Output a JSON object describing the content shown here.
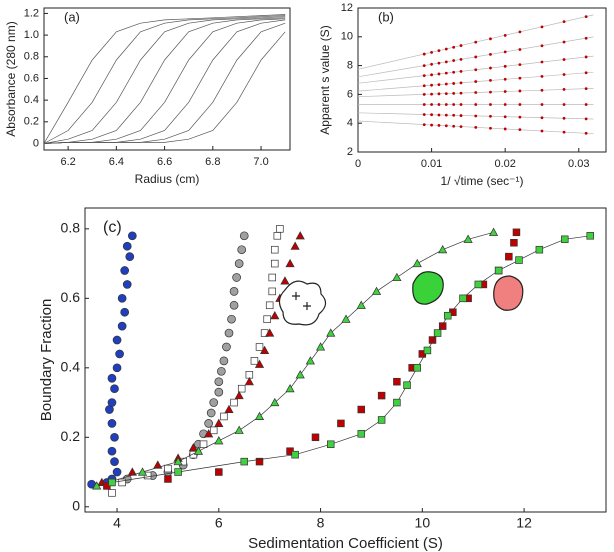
{
  "chart_data": [
    {
      "type": "line",
      "annotation": "(a)",
      "x_label": "Radius (cm)",
      "y_label": "Absorbance (280 nm)",
      "color": "#555555",
      "x": [
        6.1,
        6.2,
        6.3,
        6.4,
        6.5,
        6.6,
        6.7,
        6.8,
        6.9,
        7.0,
        7.1
      ],
      "series": [
        {
          "values": [
            0,
            0.38,
            0.77,
            1.03,
            1.11,
            1.14,
            1.15,
            1.16,
            1.17,
            1.18,
            1.19
          ]
        },
        {
          "values": [
            0,
            0.12,
            0.38,
            0.77,
            1.03,
            1.11,
            1.14,
            1.15,
            1.16,
            1.17,
            1.18
          ]
        },
        {
          "values": [
            0,
            0.04,
            0.12,
            0.38,
            0.77,
            1.03,
            1.11,
            1.14,
            1.15,
            1.16,
            1.17
          ]
        },
        {
          "values": [
            0,
            0.01,
            0.04,
            0.12,
            0.38,
            0.77,
            1.03,
            1.11,
            1.14,
            1.15,
            1.16
          ]
        },
        {
          "values": [
            0,
            0.01,
            0.01,
            0.04,
            0.12,
            0.38,
            0.77,
            1.03,
            1.11,
            1.14,
            1.15
          ]
        },
        {
          "values": [
            0,
            0.01,
            0.01,
            0.01,
            0.04,
            0.12,
            0.38,
            0.77,
            1.03,
            1.11,
            1.14
          ]
        },
        {
          "values": [
            0,
            0.01,
            0.01,
            0.01,
            0.01,
            0.04,
            0.12,
            0.38,
            0.77,
            1.03,
            1.11
          ]
        },
        {
          "values": [
            0,
            0.01,
            0.01,
            0.01,
            0.01,
            0.01,
            0.04,
            0.12,
            0.38,
            0.77,
            1.03
          ]
        }
      ],
      "xlim": [
        6.1,
        7.12
      ],
      "xticks": [
        6.2,
        6.4,
        6.6,
        6.8,
        {
          "value": 7.0,
          "label": "7.0"
        }
      ],
      "ylim": [
        -0.06,
        1.25
      ],
      "yticks": [
        0,
        0.2,
        0.4,
        0.6,
        0.8,
        {
          "value": 1.0,
          "label": "1.0"
        },
        1.2
      ]
    },
    {
      "type": "scatter",
      "annotation": "(b)",
      "x_label": "1/ √time (sec⁻¹)",
      "y_label": "Apparent s value (S)",
      "color": "#c00000",
      "x": [
        0.009,
        0.01,
        0.011,
        0.012,
        0.013,
        0.014,
        0.016,
        0.018,
        0.02,
        0.022,
        0.025,
        0.028,
        0.031
      ],
      "series": [
        {
          "values": [
            3.9,
            3.87,
            3.85,
            3.82,
            3.79,
            3.76,
            3.71,
            3.65,
            3.6,
            3.55,
            3.46,
            3.38,
            3.3
          ]
        },
        {
          "values": [
            4.6,
            4.59,
            4.57,
            4.56,
            4.55,
            4.53,
            4.5,
            4.48,
            4.45,
            4.42,
            4.38,
            4.34,
            4.3
          ]
        },
        {
          "values": [
            5.3,
            5.3,
            5.3,
            5.3,
            5.3,
            5.3,
            5.3,
            5.3,
            5.3,
            5.3,
            5.3,
            5.3,
            5.3
          ]
        },
        {
          "values": [
            6.0,
            6.02,
            6.04,
            6.05,
            6.07,
            6.09,
            6.13,
            6.16,
            6.2,
            6.24,
            6.29,
            6.35,
            6.4
          ]
        },
        {
          "values": [
            6.6,
            6.64,
            6.68,
            6.72,
            6.76,
            6.8,
            6.89,
            6.97,
            7.05,
            7.13,
            7.25,
            7.38,
            7.5
          ]
        },
        {
          "values": [
            7.3,
            7.36,
            7.42,
            7.48,
            7.54,
            7.6,
            7.71,
            7.83,
            7.95,
            8.07,
            8.25,
            8.42,
            8.6
          ]
        },
        {
          "values": [
            8.0,
            8.09,
            8.17,
            8.26,
            8.35,
            8.43,
            8.6,
            8.78,
            8.95,
            9.12,
            9.38,
            9.64,
            9.9
          ]
        },
        {
          "values": [
            8.8,
            8.92,
            9.04,
            9.15,
            9.27,
            9.39,
            9.63,
            9.86,
            10.1,
            10.34,
            10.69,
            11.05,
            11.4
          ]
        }
      ],
      "fits": {
        "color": "#bbbbbb",
        "x": [
          0,
          0.032
        ],
        "values": [
          [
            4.15,
            3.27
          ],
          [
            4.72,
            4.29
          ],
          [
            5.3,
            5.3
          ],
          [
            5.84,
            6.42
          ],
          [
            6.23,
            7.54
          ],
          [
            6.77,
            8.66
          ],
          [
            7.22,
            9.99
          ],
          [
            7.74,
            11.52
          ]
        ]
      },
      "xlim": [
        0,
        0.0337
      ],
      "xticks": [
        0,
        0.01,
        0.02,
        0.03
      ],
      "ylim": [
        2,
        12
      ],
      "yticks": [
        2,
        4,
        6,
        8,
        10,
        12
      ]
    },
    {
      "type": "scatter",
      "annotation": "(c)",
      "x_label": "Sedimentation Coefficient (S)",
      "y_label": "Boundary Fraction",
      "series": [
        {
          "color": "#1f3fbf",
          "marker": "circle",
          "line": false,
          "x": [
            3.5,
            3.8,
            3.9,
            4.0,
            3.95,
            3.9,
            3.95,
            3.9,
            3.85,
            3.9,
            3.95,
            3.9,
            4.0,
            4.05,
            4.0,
            4.1,
            4.15,
            4.1,
            4.2,
            4.15,
            4.25,
            4.2,
            4.3
          ],
          "values": [
            0.065,
            0.07,
            0.08,
            0.1,
            0.13,
            0.16,
            0.2,
            0.24,
            0.28,
            0.3,
            0.34,
            0.37,
            0.4,
            0.44,
            0.48,
            0.52,
            0.56,
            0.6,
            0.64,
            0.68,
            0.72,
            0.75,
            0.78
          ]
        },
        {
          "color": "#a0a0a0",
          "marker": "circle",
          "line": false,
          "x": [
            4.2,
            4.7,
            5.0,
            5.3,
            5.5,
            5.6,
            5.7,
            5.8,
            5.85,
            5.9,
            6.0,
            6.0,
            6.05,
            6.1,
            6.15,
            6.2,
            6.25,
            6.3,
            6.3,
            6.35,
            6.4,
            6.45,
            6.5
          ],
          "values": [
            0.08,
            0.09,
            0.1,
            0.12,
            0.15,
            0.18,
            0.21,
            0.24,
            0.27,
            0.3,
            0.33,
            0.36,
            0.39,
            0.42,
            0.46,
            0.5,
            0.54,
            0.58,
            0.62,
            0.66,
            0.7,
            0.74,
            0.78
          ]
        },
        {
          "color": "#ffffff",
          "marker": "square",
          "line": false,
          "x": [
            3.9,
            4.1,
            4.6,
            5.0,
            5.3,
            5.5,
            5.7,
            5.9,
            6.1,
            6.3,
            6.45,
            6.6,
            6.7,
            6.8,
            6.9,
            6.95,
            7.0,
            7.05,
            7.05,
            7.1,
            7.1,
            7.15,
            7.2
          ],
          "values": [
            0.04,
            0.07,
            0.09,
            0.11,
            0.13,
            0.15,
            0.18,
            0.22,
            0.26,
            0.3,
            0.34,
            0.38,
            0.42,
            0.46,
            0.5,
            0.54,
            0.58,
            0.62,
            0.66,
            0.7,
            0.74,
            0.78,
            0.8
          ]
        },
        {
          "color": "#c00000",
          "marker": "triangle",
          "line": false,
          "x": [
            3.7,
            4.3,
            4.8,
            5.2,
            5.5,
            5.8,
            6.0,
            6.2,
            6.4,
            6.6,
            6.8,
            6.9,
            7.0,
            7.1,
            7.2,
            7.3,
            7.4,
            7.5,
            7.6
          ],
          "values": [
            0.07,
            0.1,
            0.12,
            0.14,
            0.17,
            0.21,
            0.24,
            0.28,
            0.32,
            0.36,
            0.41,
            0.45,
            0.5,
            0.55,
            0.6,
            0.65,
            0.7,
            0.75,
            0.78
          ]
        },
        {
          "color": "#40d040",
          "marker": "triangle",
          "line": true,
          "x": [
            3.6,
            4.5,
            5.2,
            5.6,
            6.0,
            6.4,
            6.8,
            7.1,
            7.4,
            7.6,
            7.8,
            8.0,
            8.2,
            8.5,
            8.8,
            9.1,
            9.5,
            9.9,
            10.4,
            10.9,
            11.4
          ],
          "values": [
            0.06,
            0.1,
            0.13,
            0.16,
            0.19,
            0.22,
            0.26,
            0.3,
            0.34,
            0.38,
            0.42,
            0.46,
            0.5,
            0.54,
            0.58,
            0.62,
            0.66,
            0.7,
            0.74,
            0.77,
            0.79
          ]
        },
        {
          "color": "#c00000",
          "marker": "square",
          "line": false,
          "x": [
            3.8,
            5.0,
            6.0,
            6.8,
            7.4,
            7.9,
            8.4,
            8.8,
            9.2,
            9.5,
            9.8,
            10.0,
            10.2,
            10.4,
            10.6,
            10.9,
            11.2,
            11.5,
            11.7,
            11.8,
            11.85
          ],
          "values": [
            0.06,
            0.08,
            0.1,
            0.13,
            0.16,
            0.2,
            0.24,
            0.28,
            0.32,
            0.36,
            0.4,
            0.44,
            0.48,
            0.52,
            0.56,
            0.6,
            0.64,
            0.68,
            0.72,
            0.76,
            0.79
          ]
        },
        {
          "color": "#40d040",
          "marker": "square",
          "line": true,
          "x": [
            3.9,
            5.2,
            6.5,
            7.5,
            8.2,
            8.8,
            9.2,
            9.5,
            9.7,
            9.9,
            10.1,
            10.3,
            10.5,
            10.8,
            11.1,
            11.5,
            11.9,
            12.3,
            12.8,
            13.3
          ],
          "values": [
            0.07,
            0.1,
            0.13,
            0.15,
            0.18,
            0.21,
            0.25,
            0.3,
            0.35,
            0.4,
            0.45,
            0.5,
            0.55,
            0.6,
            0.64,
            0.68,
            0.71,
            0.74,
            0.77,
            0.78
          ]
        }
      ],
      "xlim": [
        3.37,
        13.61
      ],
      "xticks": [
        4,
        6,
        8,
        10,
        12
      ],
      "ylim": [
        -0.015,
        0.86
      ],
      "yticks": [
        0,
        0.2,
        0.4,
        0.6,
        0.8
      ]
    }
  ]
}
